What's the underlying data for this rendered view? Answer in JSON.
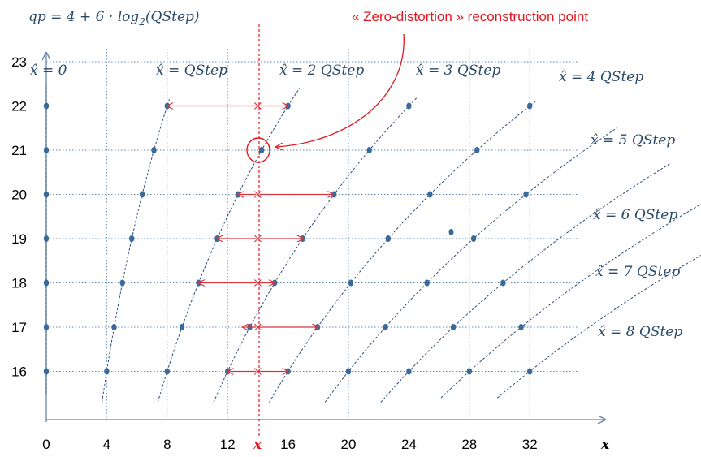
{
  "title": "qp = 4 + 6 · log₂(QStep)",
  "title_parts": {
    "pre": "qp = 4 + 6 · log",
    "sub": "2",
    "post": "(QStep)"
  },
  "annotation": "« Zero-distortion » reconstruction point",
  "x_axis": {
    "ticks": [
      0,
      4,
      8,
      12,
      16,
      20,
      24,
      28,
      32
    ],
    "label": "x",
    "marker_label": "x",
    "marker_value": 14
  },
  "y_axis": {
    "ticks": [
      16,
      17,
      18,
      19,
      20,
      21,
      22,
      23
    ]
  },
  "curve_labels": [
    {
      "id": "k0",
      "text": "x̂ = 0"
    },
    {
      "id": "k1",
      "text": "x̂ = QStep"
    },
    {
      "id": "k2",
      "text": "x̂ = 2 QStep"
    },
    {
      "id": "k3",
      "text": "x̂ = 3 QStep"
    },
    {
      "id": "k4",
      "text": "x̂ = 4 QStep"
    },
    {
      "id": "k5",
      "text": "x̂ = 5 QStep"
    },
    {
      "id": "k6",
      "text": "x̂ = 6 QStep"
    },
    {
      "id": "k7",
      "text": "x̂ = 7 QStep"
    },
    {
      "id": "k8",
      "text": "x̂ = 8 QStep"
    }
  ],
  "colors": {
    "dot": "#3a6a9a",
    "curve": "#2f4f7a",
    "grid": "#5f86b4",
    "axis": "#6a86a8",
    "red": "#e8141d",
    "arrow": "#d9353f"
  }
}
